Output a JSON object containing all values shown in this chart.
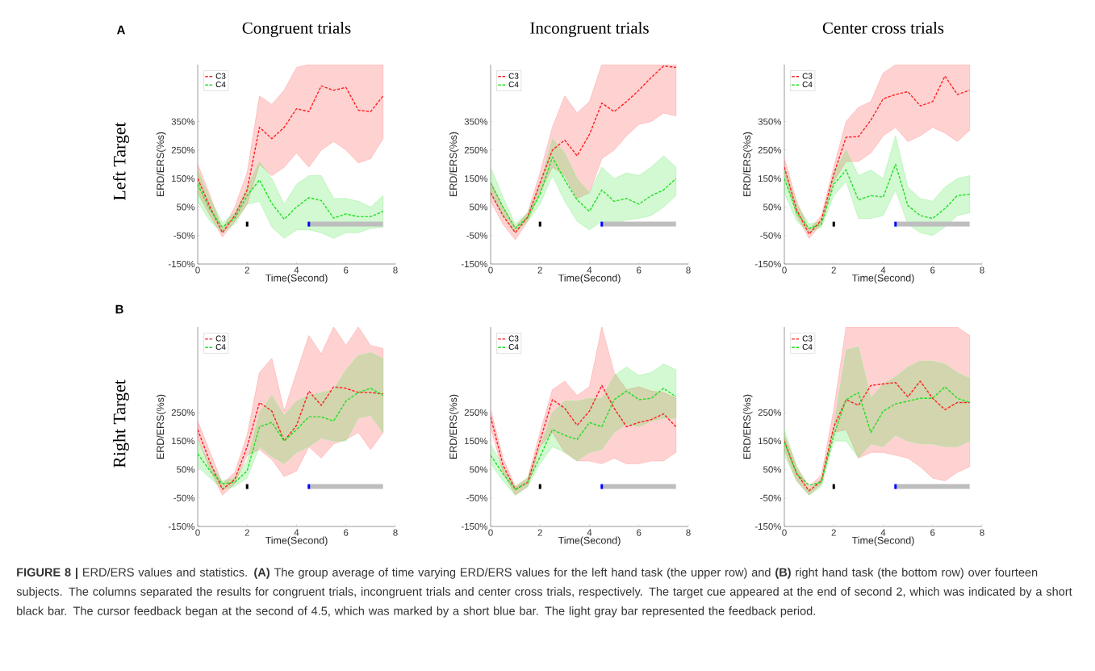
{
  "chart_data": [
    {
      "type": "line",
      "title": "Congruent trials",
      "xlabel": "Time(Second)",
      "ylabel": "ERD/ERS(%s)",
      "annotations": [
        "A",
        "Left Target",
        "**FIGURE 8 |** ERD/ERS values and statistics. **(A)** The group average of time varying ERD/ERS values for the left hand task (the upper row) and **(B)** right hand task (the bottom row) over fourteen subjects. The columns separated the results for congruent trials, incongruent trials and center cross trials, respectively. The target cue appeared at the end of second 2, which was indicated by a short black bar. The cursor feedback began at the second of 4.5, which was marked by a short blue bar. The light gray bar represented the feedback period."
      ],
      "legend": "top left",
      "line_style": "dashed",
      "xlim": [
        0,
        8
      ],
      "ylim": [
        -150,
        550
      ],
      "xticks": [
        0,
        2,
        4,
        6,
        8
      ],
      "yticks": [
        {
          "value": -150,
          "label": "-150%"
        },
        {
          "value": -50,
          "label": "-50%"
        },
        {
          "value": 50,
          "label": "50%"
        },
        {
          "value": 150,
          "label": "150%"
        },
        {
          "value": 250,
          "label": "250%"
        },
        {
          "value": 350,
          "label": "350%"
        }
      ],
      "x": [
        0,
        0.5,
        1,
        1.5,
        2,
        2.5,
        3,
        3.5,
        4,
        4.5,
        5,
        5.5,
        6,
        6.5,
        7,
        7.5
      ],
      "series": [
        {
          "name": "C3",
          "color": "#ff2020",
          "values": [
            150,
            50,
            -40,
            20,
            110,
            330,
            290,
            330,
            395,
            385,
            475,
            460,
            470,
            390,
            385,
            440
          ],
          "lower": [
            100,
            20,
            -55,
            0,
            60,
            200,
            160,
            190,
            240,
            190,
            250,
            280,
            250,
            205,
            220,
            290
          ],
          "upper": [
            200,
            90,
            -30,
            50,
            170,
            440,
            410,
            460,
            540,
            550,
            550,
            550,
            550,
            550,
            550,
            550
          ]
        },
        {
          "name": "C4",
          "color": "#20e020",
          "values": [
            130,
            40,
            -20,
            10,
            90,
            145,
            63,
            7,
            50,
            83,
            73,
            11,
            26,
            16,
            16,
            35
          ],
          "lower": [
            70,
            0,
            -40,
            -10,
            60,
            70,
            -20,
            -60,
            -30,
            -30,
            -40,
            -60,
            -40,
            -40,
            -25,
            -20
          ],
          "upper": [
            180,
            80,
            -5,
            30,
            120,
            210,
            150,
            60,
            130,
            160,
            160,
            80,
            80,
            70,
            50,
            90
          ]
        },
        {
          "type": "line",
          "line_style": "solid",
          "color": "#000000",
          "x": [
            1.95,
            2.05
          ],
          "values": [
            -10,
            -10
          ]
        },
        {
          "type": "line",
          "line_style": "solid",
          "color": "#bebebe",
          "x": [
            4.55,
            7.5
          ],
          "values": [
            -10,
            -10
          ]
        },
        {
          "type": "line",
          "line_style": "solid",
          "color": "#0000ff",
          "x": [
            4.45,
            4.55
          ],
          "values": [
            -10,
            -10
          ]
        }
      ]
    },
    {
      "type": "line",
      "title": "Incongruent trials",
      "xlabel": "Time(Second)",
      "ylabel": "ERD/ERS(%s)",
      "legend": "top left",
      "line_style": "dashed",
      "xlim": [
        0,
        8
      ],
      "ylim": [
        -150,
        550
      ],
      "xticks": [
        0,
        2,
        4,
        6,
        8
      ],
      "yticks": [
        {
          "value": -150,
          "label": "-150%"
        },
        {
          "value": -50,
          "label": "-50%"
        },
        {
          "value": 50,
          "label": "50%"
        },
        {
          "value": 150,
          "label": "150%"
        },
        {
          "value": 250,
          "label": "250%"
        },
        {
          "value": 350,
          "label": "350%"
        }
      ],
      "x": [
        0,
        0.5,
        1,
        1.5,
        2,
        2.5,
        3,
        3.5,
        4,
        4.5,
        5,
        5.5,
        6,
        6.5,
        7,
        7.5
      ],
      "series": [
        {
          "name": "C3",
          "color": "#ff2020",
          "values": [
            100,
            20,
            -40,
            15,
            135,
            250,
            285,
            230,
            305,
            415,
            385,
            420,
            460,
            505,
            545,
            540
          ],
          "lower": [
            70,
            -10,
            -65,
            0,
            100,
            190,
            160,
            80,
            100,
            220,
            250,
            300,
            340,
            350,
            380,
            370
          ],
          "upper": [
            140,
            50,
            -20,
            30,
            170,
            330,
            440,
            380,
            420,
            550,
            550,
            550,
            550,
            550,
            550,
            550
          ]
        },
        {
          "name": "C4",
          "color": "#20e020",
          "values": [
            135,
            50,
            -25,
            15,
            95,
            225,
            145,
            75,
            35,
            110,
            70,
            80,
            60,
            90,
            110,
            150
          ],
          "lower": [
            100,
            20,
            -40,
            0,
            60,
            160,
            70,
            0,
            -30,
            0,
            -10,
            5,
            10,
            20,
            50,
            90
          ],
          "upper": [
            190,
            85,
            -10,
            30,
            130,
            290,
            240,
            150,
            100,
            190,
            150,
            170,
            160,
            190,
            230,
            190
          ]
        },
        {
          "type": "line",
          "line_style": "solid",
          "color": "#000000",
          "x": [
            1.95,
            2.05
          ],
          "values": [
            -10,
            -10
          ]
        },
        {
          "type": "line",
          "line_style": "solid",
          "color": "#bebebe",
          "x": [
            4.55,
            7.5
          ],
          "values": [
            -10,
            -10
          ]
        },
        {
          "type": "line",
          "line_style": "solid",
          "color": "#0000ff",
          "x": [
            4.45,
            4.55
          ],
          "values": [
            -10,
            -10
          ]
        }
      ]
    },
    {
      "type": "line",
      "title": "Center cross trials",
      "xlabel": "Time(Second)",
      "ylabel": "ERD/ERS(%s)",
      "legend": "top left",
      "line_style": "dashed",
      "xlim": [
        0,
        8
      ],
      "ylim": [
        -150,
        550
      ],
      "xticks": [
        0,
        2,
        4,
        6,
        8
      ],
      "yticks": [
        {
          "value": -150,
          "label": "-150%"
        },
        {
          "value": -50,
          "label": "-50%"
        },
        {
          "value": 50,
          "label": "50%"
        },
        {
          "value": 150,
          "label": "150%"
        },
        {
          "value": 250,
          "label": "250%"
        },
        {
          "value": 350,
          "label": "350%"
        }
      ],
      "x": [
        0,
        0.5,
        1,
        1.5,
        2,
        2.5,
        3,
        3.5,
        4,
        4.5,
        5,
        5.5,
        6,
        6.5,
        7,
        7.5
      ],
      "series": [
        {
          "name": "C3",
          "color": "#ff2020",
          "values": [
            190,
            40,
            -45,
            5,
            165,
            295,
            297,
            355,
            430,
            445,
            455,
            405,
            420,
            510,
            445,
            460
          ],
          "lower": [
            170,
            20,
            -60,
            -10,
            140,
            210,
            210,
            240,
            300,
            330,
            280,
            300,
            330,
            310,
            280,
            320
          ],
          "upper": [
            220,
            70,
            -30,
            20,
            190,
            350,
            400,
            420,
            520,
            550,
            550,
            550,
            550,
            550,
            550,
            550
          ]
        },
        {
          "name": "C4",
          "color": "#20e020",
          "values": [
            150,
            30,
            -25,
            -10,
            130,
            180,
            75,
            90,
            85,
            200,
            55,
            20,
            10,
            45,
            90,
            95
          ],
          "lower": [
            100,
            0,
            -40,
            -20,
            90,
            140,
            10,
            10,
            20,
            110,
            -10,
            -40,
            -50,
            -20,
            20,
            30
          ],
          "upper": [
            190,
            60,
            -10,
            0,
            170,
            250,
            160,
            180,
            150,
            300,
            120,
            80,
            70,
            120,
            150,
            160
          ]
        },
        {
          "type": "line",
          "line_style": "solid",
          "color": "#000000",
          "x": [
            1.95,
            2.05
          ],
          "values": [
            -10,
            -10
          ]
        },
        {
          "type": "line",
          "line_style": "solid",
          "color": "#bebebe",
          "x": [
            4.55,
            7.5
          ],
          "values": [
            -10,
            -10
          ]
        },
        {
          "type": "line",
          "line_style": "solid",
          "color": "#0000ff",
          "x": [
            4.45,
            4.55
          ],
          "values": [
            -10,
            -10
          ]
        }
      ]
    },
    {
      "type": "line",
      "xlabel": "Time(Second)",
      "ylabel": "ERD/ERS(%s)",
      "annotations": [
        "B",
        "Right Target"
      ],
      "legend": "top left",
      "line_style": "dashed",
      "xlim": [
        0,
        8
      ],
      "ylim": [
        -150,
        550
      ],
      "xticks": [
        0,
        2,
        4,
        6,
        8
      ],
      "yticks": [
        {
          "value": -150,
          "label": "-150%"
        },
        {
          "value": -50,
          "label": "-50%"
        },
        {
          "value": 50,
          "label": "50%"
        },
        {
          "value": 150,
          "label": "150%"
        },
        {
          "value": 250,
          "label": "250%"
        }
      ],
      "x": [
        0,
        0.5,
        1,
        1.5,
        2,
        2.5,
        3,
        3.5,
        4,
        4.5,
        5,
        5.5,
        6,
        6.5,
        7,
        7.5
      ],
      "series": [
        {
          "name": "C3",
          "color": "#ff2020",
          "values": [
            190,
            75,
            -20,
            15,
            130,
            285,
            255,
            150,
            205,
            325,
            275,
            340,
            335,
            320,
            320,
            315
          ],
          "lower": [
            160,
            50,
            -40,
            0,
            100,
            120,
            85,
            25,
            45,
            130,
            90,
            140,
            155,
            180,
            120,
            180
          ],
          "upper": [
            220,
            110,
            0,
            40,
            170,
            390,
            440,
            255,
            390,
            520,
            455,
            550,
            485,
            550,
            485,
            475
          ]
        },
        {
          "name": "C4",
          "color": "#20e020",
          "values": [
            105,
            45,
            0,
            5,
            45,
            200,
            215,
            150,
            190,
            235,
            235,
            220,
            290,
            320,
            335,
            310
          ],
          "lower": [
            60,
            20,
            -20,
            -10,
            20,
            130,
            95,
            70,
            110,
            130,
            160,
            150,
            150,
            230,
            240,
            180
          ],
          "upper": [
            150,
            70,
            10,
            20,
            80,
            250,
            310,
            240,
            290,
            310,
            320,
            330,
            400,
            450,
            460,
            440
          ]
        },
        {
          "type": "line",
          "line_style": "solid",
          "color": "#000000",
          "x": [
            1.95,
            2.05
          ],
          "values": [
            -10,
            -10
          ]
        },
        {
          "type": "line",
          "line_style": "solid",
          "color": "#bebebe",
          "x": [
            4.55,
            7.5
          ],
          "values": [
            -10,
            -10
          ]
        },
        {
          "type": "line",
          "line_style": "solid",
          "color": "#0000ff",
          "x": [
            4.45,
            4.55
          ],
          "values": [
            -10,
            -10
          ]
        }
      ]
    },
    {
      "type": "line",
      "xlabel": "Time(Second)",
      "ylabel": "ERD/ERS(%s)",
      "legend": "top left",
      "line_style": "dashed",
      "xlim": [
        0,
        8
      ],
      "ylim": [
        -150,
        550
      ],
      "xticks": [
        0,
        2,
        4,
        6,
        8
      ],
      "yticks": [
        {
          "value": -150,
          "label": "-150%"
        },
        {
          "value": -50,
          "label": "-50%"
        },
        {
          "value": 50,
          "label": "50%"
        },
        {
          "value": 150,
          "label": "150%"
        },
        {
          "value": 250,
          "label": "250%"
        }
      ],
      "x": [
        0,
        0.5,
        1,
        1.5,
        2,
        2.5,
        3,
        3.5,
        4,
        4.5,
        5,
        5.5,
        6,
        6.5,
        7,
        7.5
      ],
      "series": [
        {
          "name": "C3",
          "color": "#ff2020",
          "values": [
            235,
            65,
            -20,
            5,
            150,
            295,
            265,
            205,
            255,
            345,
            265,
            200,
            215,
            225,
            245,
            200
          ],
          "lower": [
            200,
            40,
            -40,
            -10,
            130,
            180,
            110,
            80,
            80,
            70,
            90,
            70,
            70,
            80,
            80,
            110
          ],
          "upper": [
            260,
            90,
            -10,
            20,
            180,
            330,
            360,
            310,
            340,
            550,
            390,
            330,
            340,
            325,
            320,
            300
          ]
        },
        {
          "name": "C4",
          "color": "#20e020",
          "values": [
            100,
            35,
            -20,
            5,
            95,
            190,
            170,
            155,
            215,
            200,
            295,
            325,
            295,
            300,
            335,
            305
          ],
          "lower": [
            70,
            10,
            -40,
            -10,
            70,
            130,
            110,
            80,
            110,
            120,
            180,
            210,
            200,
            220,
            230,
            230
          ],
          "upper": [
            140,
            60,
            -10,
            20,
            130,
            250,
            290,
            290,
            300,
            300,
            380,
            410,
            380,
            390,
            420,
            400
          ]
        },
        {
          "type": "line",
          "line_style": "solid",
          "color": "#000000",
          "x": [
            1.95,
            2.05
          ],
          "values": [
            -10,
            -10
          ]
        },
        {
          "type": "line",
          "line_style": "solid",
          "color": "#bebebe",
          "x": [
            4.55,
            7.5
          ],
          "values": [
            -10,
            -10
          ]
        },
        {
          "type": "line",
          "line_style": "solid",
          "color": "#0000ff",
          "x": [
            4.45,
            4.55
          ],
          "values": [
            -10,
            -10
          ]
        }
      ]
    },
    {
      "type": "line",
      "xlabel": "Time(Second)",
      "ylabel": "ERD/ERS(%s)",
      "legend": "top left",
      "line_style": "dashed",
      "xlim": [
        0,
        8
      ],
      "ylim": [
        -150,
        550
      ],
      "xticks": [
        0,
        2,
        4,
        6,
        8
      ],
      "yticks": [
        {
          "value": -150,
          "label": "-150%"
        },
        {
          "value": -50,
          "label": "-50%"
        },
        {
          "value": 50,
          "label": "50%"
        },
        {
          "value": 150,
          "label": "150%"
        },
        {
          "value": 250,
          "label": "250%"
        }
      ],
      "x": [
        0,
        0.5,
        1,
        1.5,
        2,
        2.5,
        3,
        3.5,
        4,
        4.5,
        5,
        5.5,
        6,
        6.5,
        7,
        7.5
      ],
      "series": [
        {
          "name": "C3",
          "color": "#ff2020",
          "values": [
            150,
            35,
            -25,
            10,
            200,
            295,
            275,
            345,
            350,
            355,
            305,
            360,
            300,
            260,
            285,
            285
          ],
          "lower": [
            120,
            10,
            -40,
            0,
            180,
            190,
            90,
            110,
            110,
            100,
            90,
            60,
            20,
            10,
            40,
            60
          ],
          "upper": [
            170,
            60,
            -10,
            30,
            260,
            550,
            550,
            550,
            550,
            550,
            550,
            550,
            550,
            550,
            550,
            520
          ]
        },
        {
          "name": "C4",
          "color": "#20e020",
          "values": [
            145,
            35,
            -5,
            5,
            170,
            295,
            320,
            180,
            255,
            280,
            290,
            300,
            300,
            340,
            300,
            285
          ],
          "lower": [
            100,
            10,
            -40,
            -10,
            150,
            150,
            90,
            140,
            130,
            170,
            150,
            140,
            140,
            130,
            130,
            150
          ],
          "upper": [
            190,
            60,
            -20,
            20,
            200,
            470,
            480,
            300,
            350,
            375,
            410,
            430,
            430,
            420,
            390,
            370
          ]
        },
        {
          "type": "line",
          "line_style": "solid",
          "color": "#000000",
          "x": [
            1.95,
            2.05
          ],
          "values": [
            -10,
            -10
          ]
        },
        {
          "type": "line",
          "line_style": "solid",
          "color": "#bebebe",
          "x": [
            4.55,
            7.5
          ],
          "values": [
            -10,
            -10
          ]
        },
        {
          "type": "line",
          "line_style": "solid",
          "color": "#0000ff",
          "x": [
            4.45,
            4.55
          ],
          "values": [
            -10,
            -10
          ]
        }
      ]
    }
  ]
}
